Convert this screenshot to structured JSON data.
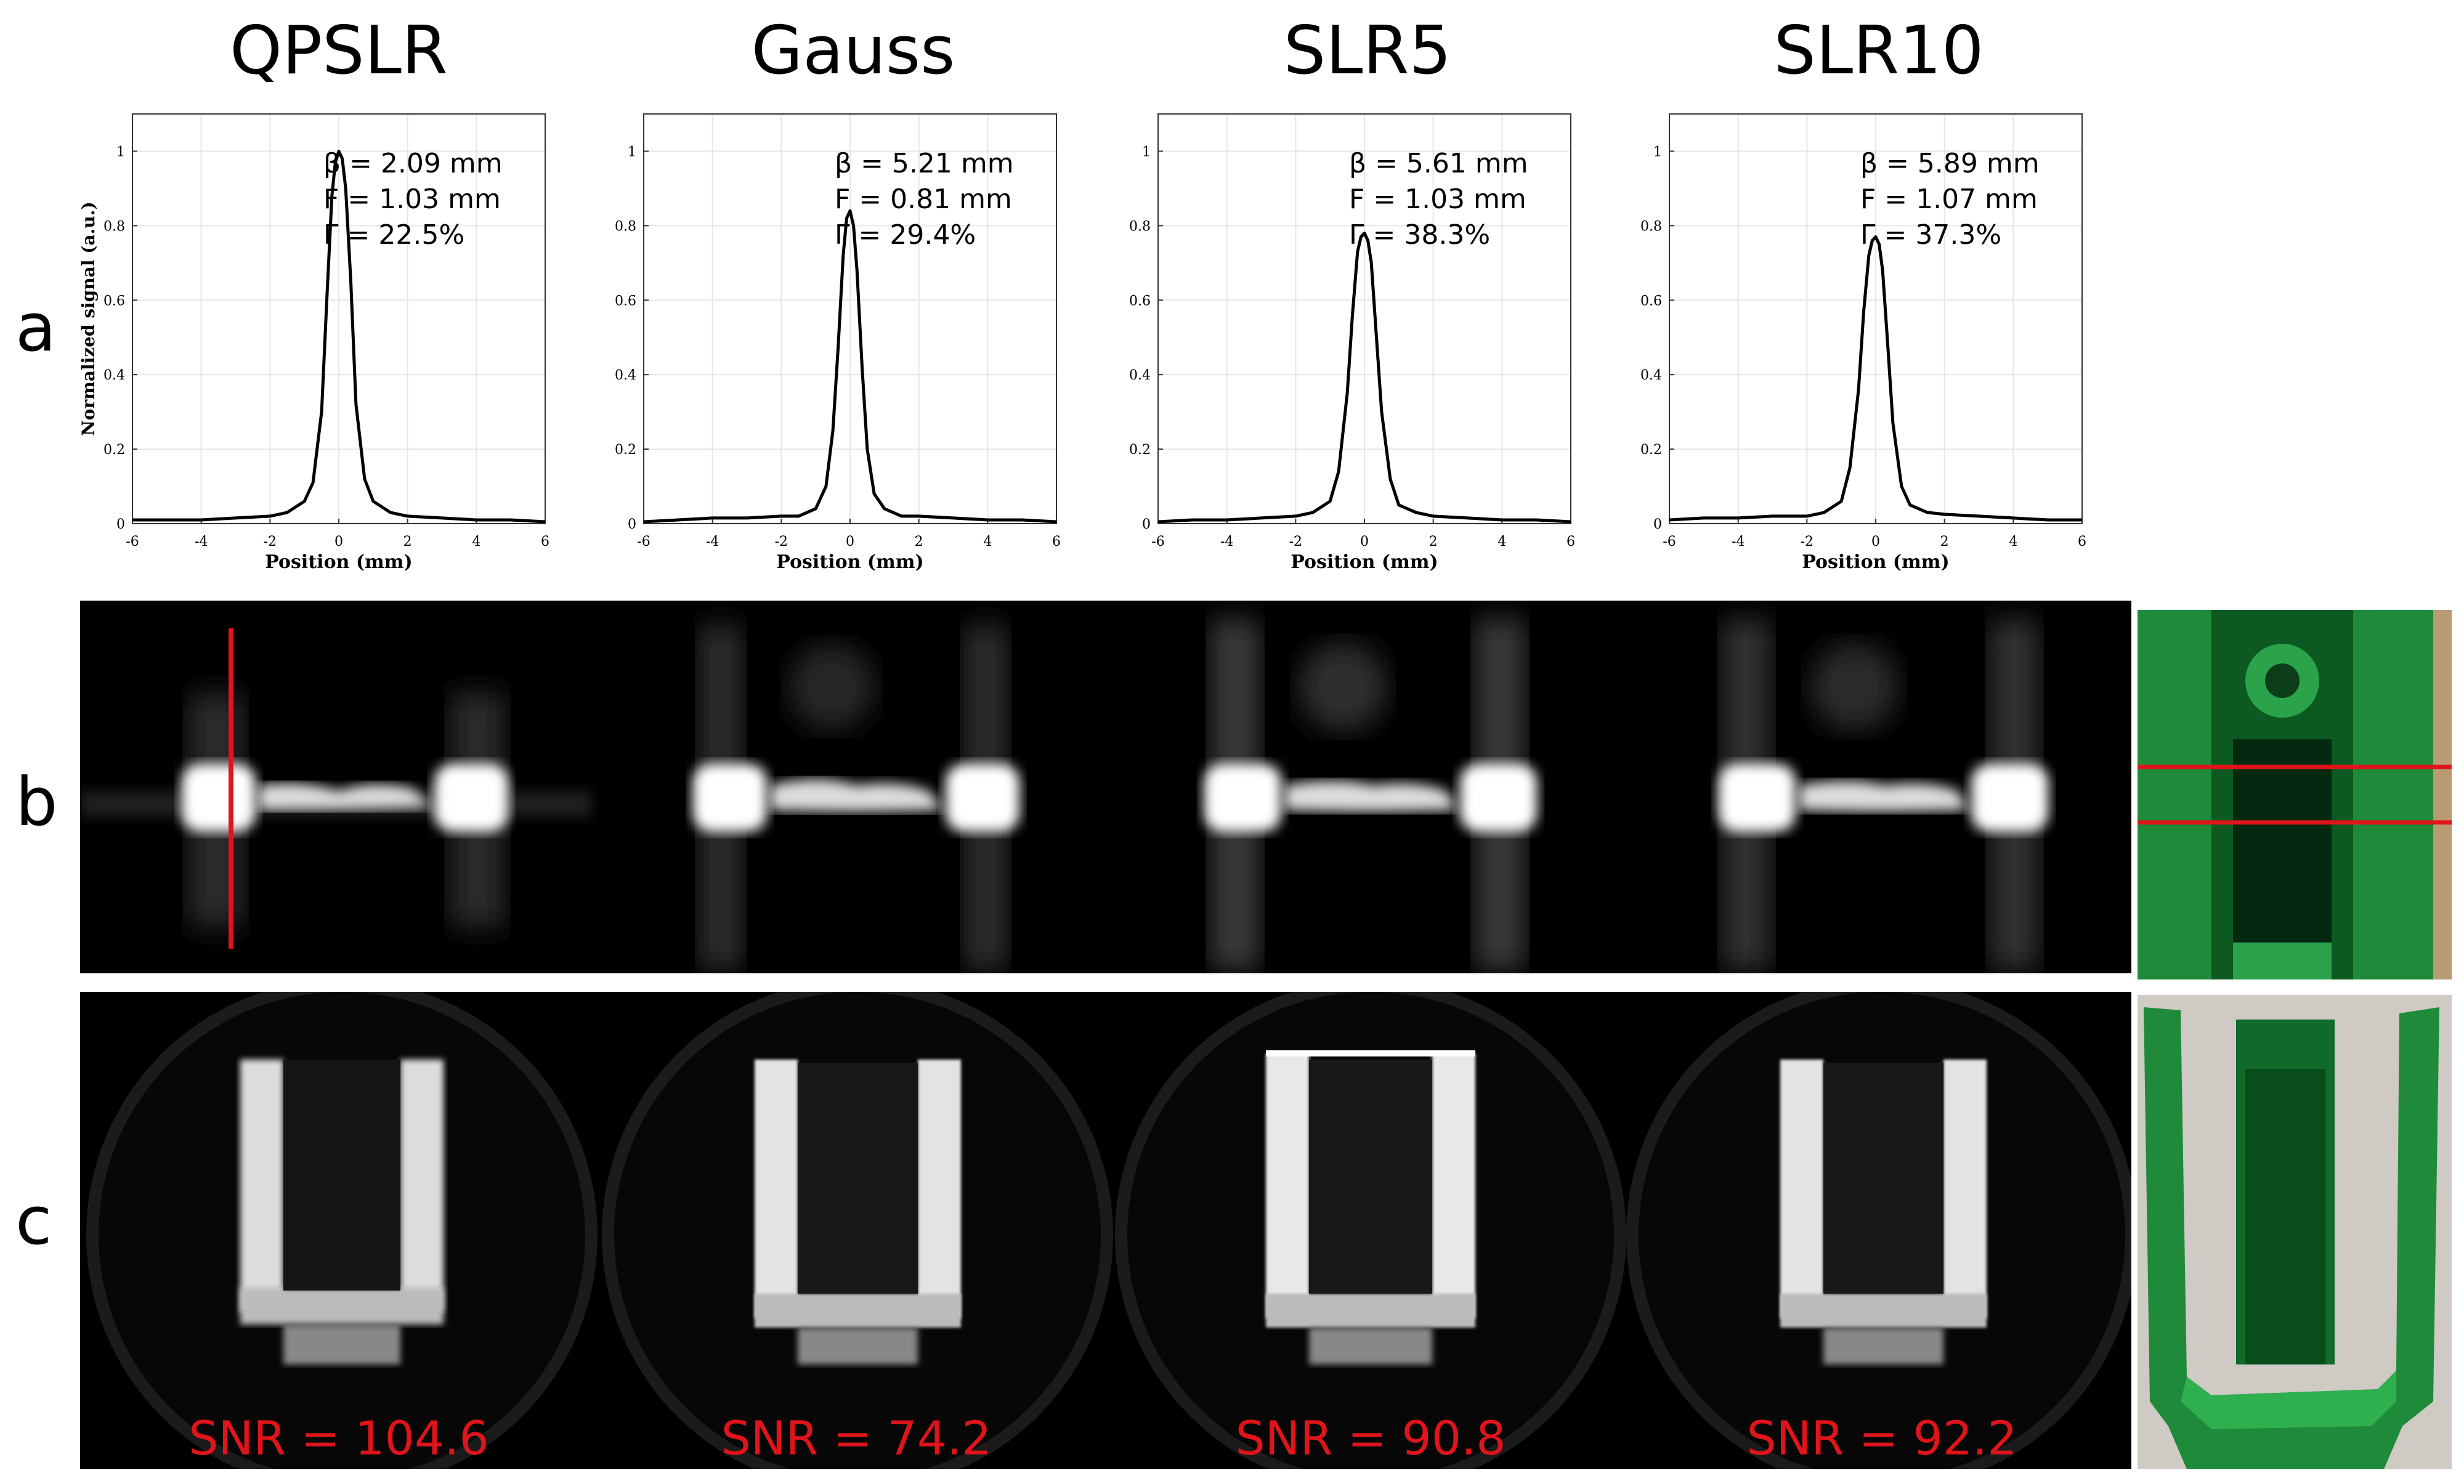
{
  "columns": [
    "QPSLR",
    "Gauss",
    "SLR5",
    "SLR10"
  ],
  "row_labels": [
    "a",
    "b",
    "c"
  ],
  "chart_data": [
    {
      "type": "line",
      "title": "QPSLR",
      "xlabel": "Position (mm)",
      "ylabel": "Normalized signal (a.u.)",
      "xlim": [
        -6,
        6
      ],
      "ylim": [
        0,
        1.1
      ],
      "xticks": [
        "-6",
        "-4",
        "-2",
        "0",
        "2",
        "4",
        "6"
      ],
      "yticks": [
        "0",
        "0.2",
        "0.4",
        "0.6",
        "0.8",
        "1"
      ],
      "grid": true,
      "x": [
        -6,
        -5,
        -4,
        -3,
        -2,
        -1.5,
        -1,
        -0.75,
        -0.5,
        -0.35,
        -0.2,
        -0.1,
        0,
        0.1,
        0.2,
        0.35,
        0.5,
        0.75,
        1,
        1.5,
        2,
        3,
        4,
        5,
        6
      ],
      "y": [
        0.01,
        0.01,
        0.01,
        0.015,
        0.02,
        0.03,
        0.06,
        0.11,
        0.3,
        0.6,
        0.88,
        0.97,
        1.0,
        0.98,
        0.9,
        0.65,
        0.32,
        0.12,
        0.06,
        0.03,
        0.02,
        0.015,
        0.01,
        0.01,
        0.005
      ],
      "annotations": [
        "β = 2.09 mm",
        "F = 1.03 mm",
        "Γ = 22.5%"
      ]
    },
    {
      "type": "line",
      "title": "Gauss",
      "xlabel": "Position (mm)",
      "ylabel": "",
      "xlim": [
        -6,
        6
      ],
      "ylim": [
        0,
        1.1
      ],
      "xticks": [
        "-6",
        "-4",
        "-2",
        "0",
        "2",
        "4",
        "6"
      ],
      "yticks": [
        "0",
        "0.2",
        "0.4",
        "0.6",
        "0.8",
        "1"
      ],
      "grid": true,
      "x": [
        -6,
        -5,
        -4,
        -3,
        -2,
        -1.5,
        -1,
        -0.7,
        -0.5,
        -0.35,
        -0.2,
        -0.1,
        0,
        0.1,
        0.2,
        0.35,
        0.5,
        0.7,
        1,
        1.5,
        2,
        3,
        4,
        5,
        6
      ],
      "y": [
        0.005,
        0.01,
        0.015,
        0.015,
        0.02,
        0.02,
        0.04,
        0.1,
        0.25,
        0.47,
        0.72,
        0.82,
        0.84,
        0.8,
        0.68,
        0.42,
        0.2,
        0.08,
        0.04,
        0.02,
        0.02,
        0.015,
        0.01,
        0.01,
        0.005
      ],
      "annotations": [
        "β = 5.21 mm",
        "F = 0.81 mm",
        "Γ = 29.4%"
      ]
    },
    {
      "type": "line",
      "title": "SLR5",
      "xlabel": "Position (mm)",
      "ylabel": "",
      "xlim": [
        -6,
        6
      ],
      "ylim": [
        0,
        1.1
      ],
      "xticks": [
        "-6",
        "-4",
        "-2",
        "0",
        "2",
        "4",
        "6"
      ],
      "yticks": [
        "0",
        "0.2",
        "0.4",
        "0.6",
        "0.8",
        "1"
      ],
      "grid": true,
      "x": [
        -6,
        -5,
        -4,
        -3,
        -2,
        -1.5,
        -1,
        -0.75,
        -0.5,
        -0.35,
        -0.2,
        -0.1,
        0,
        0.1,
        0.2,
        0.35,
        0.5,
        0.75,
        1,
        1.5,
        2,
        3,
        4,
        5,
        6
      ],
      "y": [
        0.005,
        0.01,
        0.01,
        0.015,
        0.02,
        0.03,
        0.06,
        0.14,
        0.35,
        0.56,
        0.73,
        0.77,
        0.78,
        0.76,
        0.7,
        0.5,
        0.3,
        0.12,
        0.05,
        0.03,
        0.02,
        0.015,
        0.01,
        0.01,
        0.005
      ],
      "annotations": [
        "β = 5.61 mm",
        "F = 1.03 mm",
        "Γ = 38.3%"
      ]
    },
    {
      "type": "line",
      "title": "SLR10",
      "xlabel": "Position (mm)",
      "ylabel": "",
      "xlim": [
        -6,
        6
      ],
      "ylim": [
        0,
        1.1
      ],
      "xticks": [
        "-6",
        "-4",
        "-2",
        "0",
        "2",
        "4",
        "6"
      ],
      "yticks": [
        "0",
        "0.2",
        "0.4",
        "0.6",
        "0.8",
        "1"
      ],
      "grid": true,
      "x": [
        -6,
        -5,
        -4,
        -3,
        -2,
        -1.5,
        -1,
        -0.75,
        -0.5,
        -0.35,
        -0.2,
        -0.1,
        0,
        0.1,
        0.2,
        0.35,
        0.5,
        0.75,
        1,
        1.5,
        2,
        3,
        4,
        5,
        6
      ],
      "y": [
        0.01,
        0.015,
        0.015,
        0.02,
        0.02,
        0.03,
        0.06,
        0.15,
        0.36,
        0.57,
        0.72,
        0.76,
        0.77,
        0.75,
        0.68,
        0.48,
        0.27,
        0.1,
        0.05,
        0.03,
        0.025,
        0.02,
        0.015,
        0.01,
        0.01
      ],
      "annotations": [
        "β = 5.89 mm",
        "F = 1.07 mm",
        "Γ = 37.3%"
      ]
    }
  ],
  "snr_labels": [
    "SNR = 104.6",
    "SNR = 74.2",
    "SNR = 90.8",
    "SNR = 92.2"
  ],
  "colors": {
    "curve": "#000000",
    "grid": "#e6e6e6",
    "marker_red": "#e0141a",
    "phantom_green": "#1f8a3a"
  },
  "photo_icons": [
    "phantom-top-view-photo",
    "phantom-section-photo"
  ]
}
